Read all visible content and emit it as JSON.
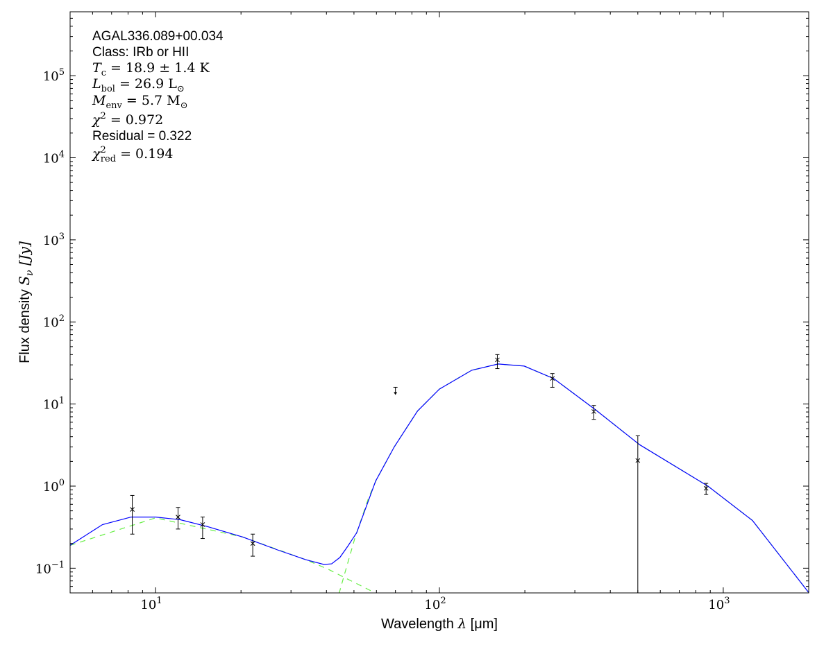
{
  "chart_data": {
    "type": "line",
    "xlabel": {
      "text": "Wavelength ",
      "symbol": "λ",
      "unit": " [μm]"
    },
    "ylabel": {
      "text": "Flux density ",
      "symbol": "S",
      "sub": "ν",
      "unit": " [Jy]"
    },
    "x_scale": "log",
    "y_scale": "log",
    "xlim": [
      5,
      2000
    ],
    "ylim": [
      0.05,
      600000
    ],
    "x_ticks": [
      {
        "v": 10,
        "base": "10",
        "exp": "1"
      },
      {
        "v": 100,
        "base": "10",
        "exp": "2"
      },
      {
        "v": 1000,
        "base": "10",
        "exp": "3"
      }
    ],
    "y_ticks": [
      {
        "v": 0.1,
        "base": "10",
        "exp": "−1"
      },
      {
        "v": 1,
        "base": "10",
        "exp": "0"
      },
      {
        "v": 10,
        "base": "10",
        "exp": "1"
      },
      {
        "v": 100,
        "base": "10",
        "exp": "2"
      },
      {
        "v": 1000,
        "base": "10",
        "exp": "3"
      },
      {
        "v": 10000,
        "base": "10",
        "exp": "4"
      },
      {
        "v": 100000,
        "base": "10",
        "exp": "5"
      }
    ],
    "grid": false,
    "annotations": [
      {
        "main": "AGAL336.089+00.034",
        "style": "sans"
      },
      {
        "main": "Class: IRb or HII",
        "style": "sans"
      },
      {
        "main": "T",
        "sub": "c",
        "rest": " = 18.9 ± 1.4 K",
        "style": "math"
      },
      {
        "main": "L",
        "sub": "bol",
        "rest": " = 26.9 L",
        "sunsub": "⊙",
        "style": "math"
      },
      {
        "main": "M",
        "sub": "env",
        "rest": " = 5.7 M",
        "sunsub": "⊙",
        "style": "math"
      },
      {
        "main": "χ",
        "sup": "2",
        "rest": " = 0.972",
        "style": "math"
      },
      {
        "main": "Residual = 0.322",
        "style": "sans"
      },
      {
        "main": "χ",
        "sup": "2",
        "sub": "red",
        "rest": " = 0.194",
        "style": "math"
      }
    ],
    "colors": {
      "model_total": "#0000ff",
      "components": "#66ee44",
      "data": "#000000"
    },
    "series": [
      {
        "role": "model-total",
        "style": "solid",
        "x": [
          5.0,
          6.5,
          8.2,
          10,
          12.2,
          15.3,
          20.3,
          26.9,
          33.8,
          39.2,
          41.7,
          44.6,
          47.5,
          51.1,
          59.6,
          69.3,
          83.7,
          100,
          130,
          161,
          199,
          253,
          355,
          507,
          883,
          1268,
          1995
        ],
        "y": [
          0.19,
          0.34,
          0.42,
          0.42,
          0.39,
          0.32,
          0.24,
          0.167,
          0.127,
          0.111,
          0.113,
          0.135,
          0.184,
          0.27,
          1.15,
          3.0,
          8.2,
          15.2,
          25.8,
          30.7,
          29,
          20.4,
          8.5,
          3.2,
          1.0,
          0.38,
          0.051
        ]
      },
      {
        "role": "warm-component",
        "style": "dashed",
        "x": [
          5.0,
          10,
          20.3,
          33.8,
          40.6,
          47,
          53,
          60
        ],
        "y": [
          0.19,
          0.41,
          0.24,
          0.127,
          0.097,
          0.075,
          0.061,
          0.049
        ]
      },
      {
        "role": "cold-component",
        "style": "dashed",
        "x": [
          44.3,
          46.1,
          50.5,
          56.3,
          60,
          69.3,
          83.7,
          100,
          130,
          161,
          199,
          253,
          355,
          507,
          883,
          1268,
          1995
        ],
        "y": [
          0.049,
          0.08,
          0.24,
          0.72,
          1.2,
          3.0,
          8.2,
          15.2,
          25.8,
          30.7,
          29,
          20.4,
          8.5,
          3.2,
          1.0,
          0.38,
          0.051
        ]
      }
    ],
    "points": [
      {
        "x": 8.28,
        "y": 0.52,
        "err_lo": 0.26,
        "err_hi": 0.77
      },
      {
        "x": 12,
        "y": 0.42,
        "err_lo": 0.3,
        "err_hi": 0.55
      },
      {
        "x": 14.65,
        "y": 0.34,
        "err_lo": 0.23,
        "err_hi": 0.42
      },
      {
        "x": 22,
        "y": 0.2,
        "err_lo": 0.14,
        "err_hi": 0.26
      },
      {
        "x": 160,
        "y": 34.5,
        "err_lo": 27,
        "err_hi": 40
      },
      {
        "x": 250,
        "y": 20.5,
        "err_lo": 16,
        "err_hi": 23.5
      },
      {
        "x": 350,
        "y": 8.1,
        "err_lo": 6.5,
        "err_hi": 9.6
      },
      {
        "x": 500,
        "y": 2.05,
        "err_lo": 0.0,
        "err_hi": 4.1
      },
      {
        "x": 870,
        "y": 0.94,
        "err_lo": 0.79,
        "err_hi": 1.08
      }
    ],
    "upper_limits": [
      {
        "x": 70,
        "y": 16
      }
    ]
  }
}
